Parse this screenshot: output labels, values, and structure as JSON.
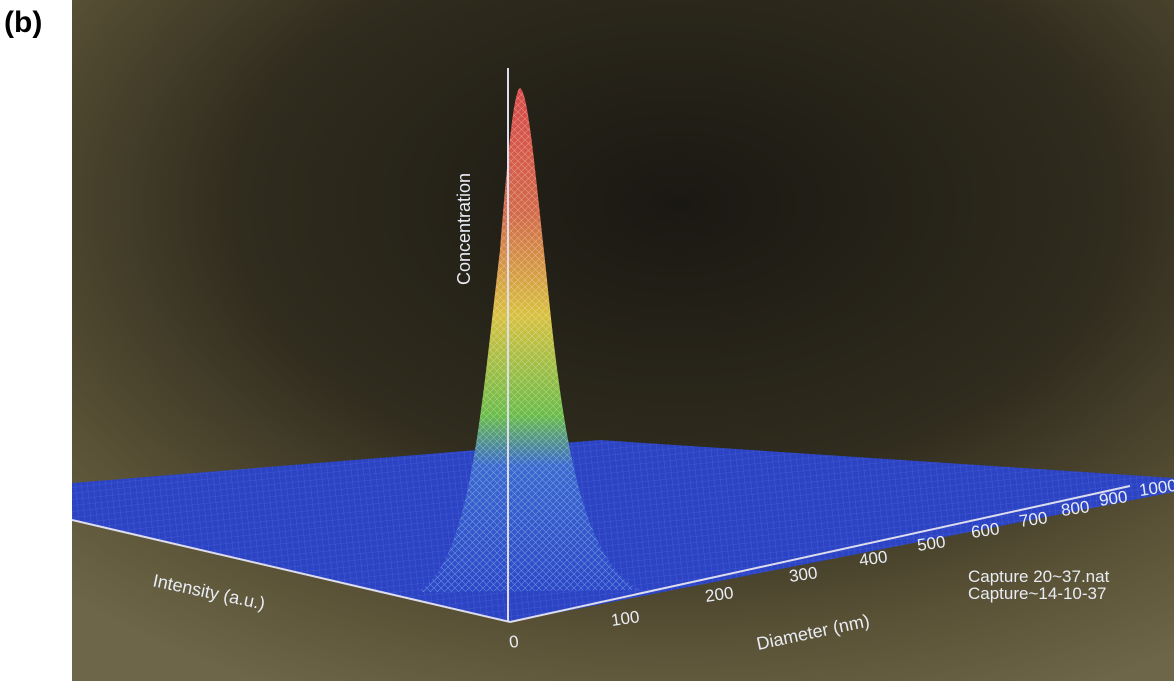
{
  "panel_label": "(b)",
  "axes": {
    "z_label": "Concentration",
    "x_label": "Diameter (nm)",
    "y_label": "Intensity (a.u.)",
    "x_ticks": [
      0,
      100,
      200,
      300,
      400,
      500,
      600,
      700,
      800,
      900,
      1000
    ]
  },
  "legend": [
    "Capture 20~37.nat",
    "Capture~14-10-37"
  ]
}
